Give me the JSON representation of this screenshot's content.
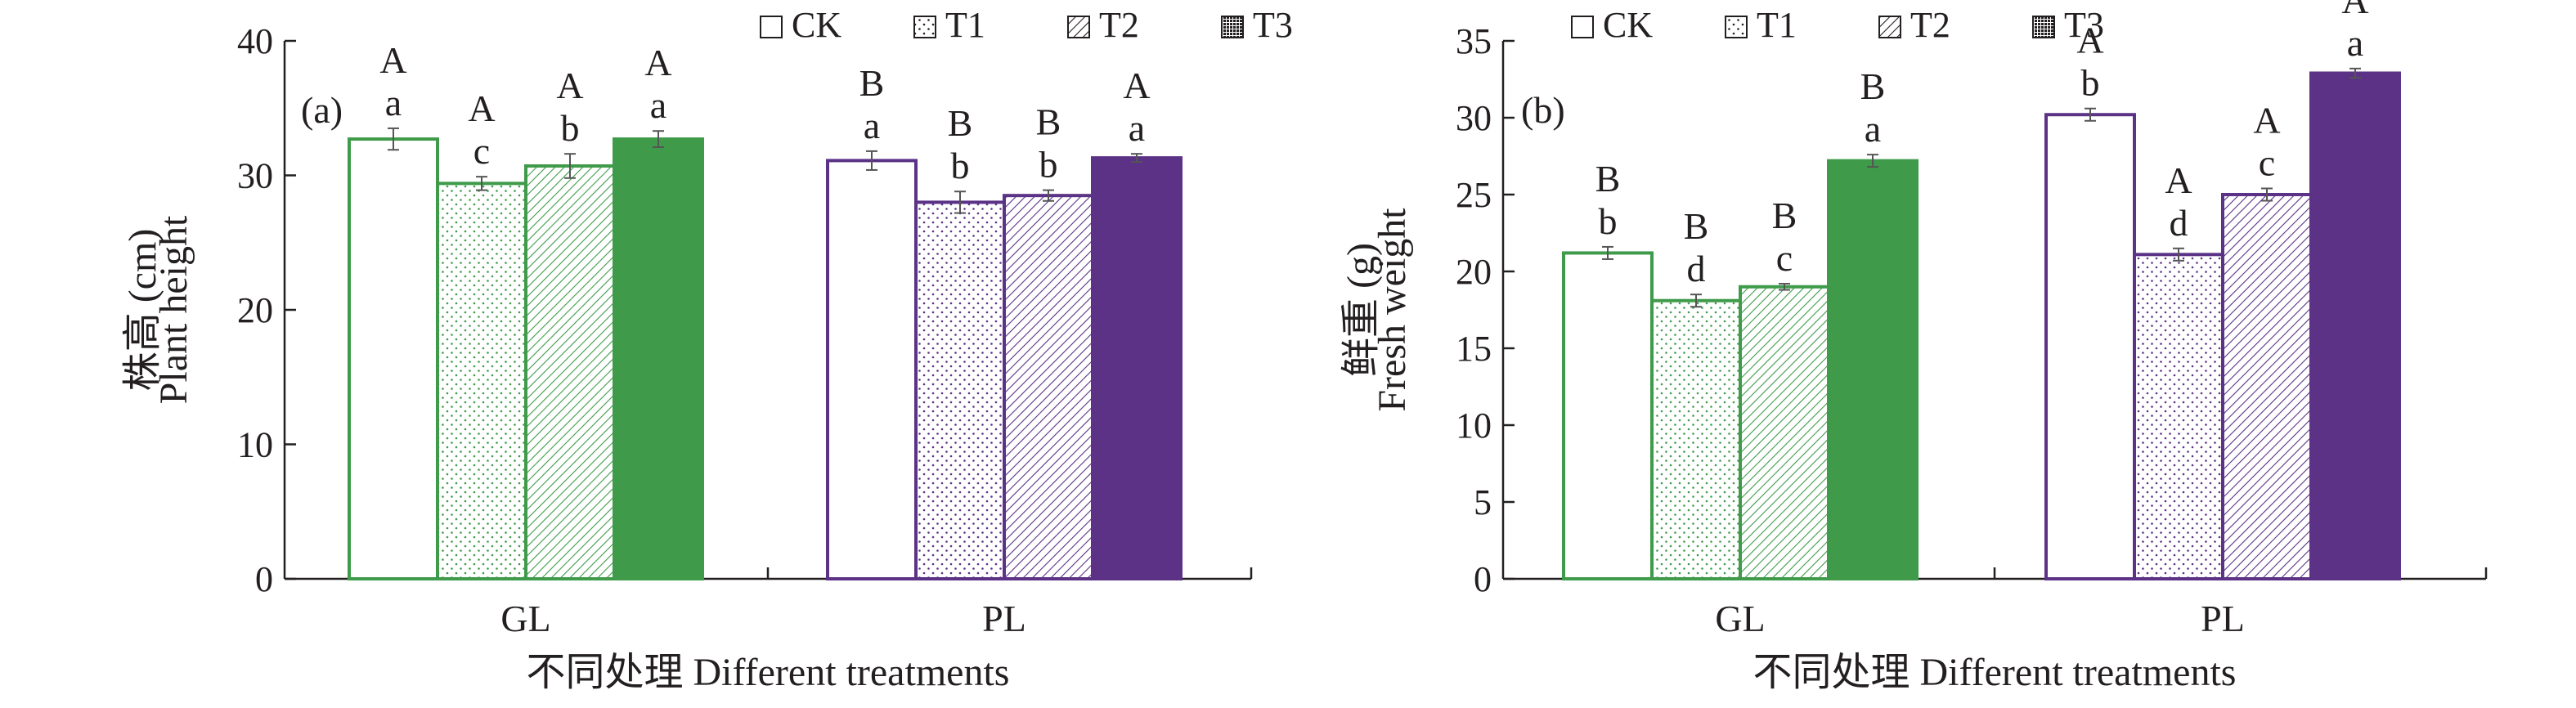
{
  "colors": {
    "GL": "#3f9b4a",
    "PL": "#5b3286",
    "axis": "#231f20",
    "error_bar": "#555555"
  },
  "legend_entries": [
    {
      "label": "CK",
      "pattern": "empty"
    },
    {
      "label": "T1",
      "pattern": "dots"
    },
    {
      "label": "T2",
      "pattern": "hatch"
    },
    {
      "label": "T3",
      "pattern": "solid"
    }
  ],
  "chart_data": [
    {
      "type": "bar",
      "panel_label": "(a)",
      "ylabel_cn": "株高 (cm)",
      "ylabel_en": "Plant height",
      "xlabel": "不同处理 Different treatments",
      "categories": [
        "GL",
        "PL"
      ],
      "ylim": [
        0,
        40
      ],
      "yticks": [
        0,
        10,
        20,
        30,
        40
      ],
      "series": [
        {
          "name": "CK",
          "values": [
            32.7,
            31.1
          ],
          "errors": [
            0.8,
            0.7
          ],
          "upper_letters": [
            "A",
            "B"
          ],
          "lower_letters": [
            "a",
            "a"
          ]
        },
        {
          "name": "T1",
          "values": [
            29.4,
            28.0
          ],
          "errors": [
            0.5,
            0.8
          ],
          "upper_letters": [
            "A",
            "B"
          ],
          "lower_letters": [
            "c",
            "b"
          ]
        },
        {
          "name": "T2",
          "values": [
            30.7,
            28.5
          ],
          "errors": [
            0.9,
            0.4
          ],
          "upper_letters": [
            "A",
            "B"
          ],
          "lower_letters": [
            "b",
            "b"
          ]
        },
        {
          "name": "T3",
          "values": [
            32.7,
            31.3
          ],
          "errors": [
            0.6,
            0.3
          ],
          "upper_letters": [
            "A",
            "A"
          ],
          "lower_letters": [
            "a",
            "a"
          ]
        }
      ]
    },
    {
      "type": "bar",
      "panel_label": "(b)",
      "ylabel_cn": "鲜重 (g)",
      "ylabel_en": "Fresh weight",
      "xlabel": "不同处理 Different treatments",
      "categories": [
        "GL",
        "PL"
      ],
      "ylim": [
        0,
        35
      ],
      "yticks": [
        0,
        5,
        10,
        15,
        20,
        25,
        30,
        35
      ],
      "series": [
        {
          "name": "CK",
          "values": [
            21.2,
            30.2
          ],
          "errors": [
            0.4,
            0.4
          ],
          "upper_letters": [
            "B",
            "A"
          ],
          "lower_letters": [
            "b",
            "b"
          ]
        },
        {
          "name": "T1",
          "values": [
            18.1,
            21.1
          ],
          "errors": [
            0.4,
            0.4
          ],
          "upper_letters": [
            "B",
            "A"
          ],
          "lower_letters": [
            "d",
            "d"
          ]
        },
        {
          "name": "T2",
          "values": [
            19.0,
            25.0
          ],
          "errors": [
            0.2,
            0.4
          ],
          "upper_letters": [
            "B",
            "A"
          ],
          "lower_letters": [
            "c",
            "c"
          ]
        },
        {
          "name": "T3",
          "values": [
            27.2,
            32.9
          ],
          "errors": [
            0.4,
            0.3
          ],
          "upper_letters": [
            "B",
            "A"
          ],
          "lower_letters": [
            "a",
            "a"
          ]
        }
      ]
    }
  ]
}
